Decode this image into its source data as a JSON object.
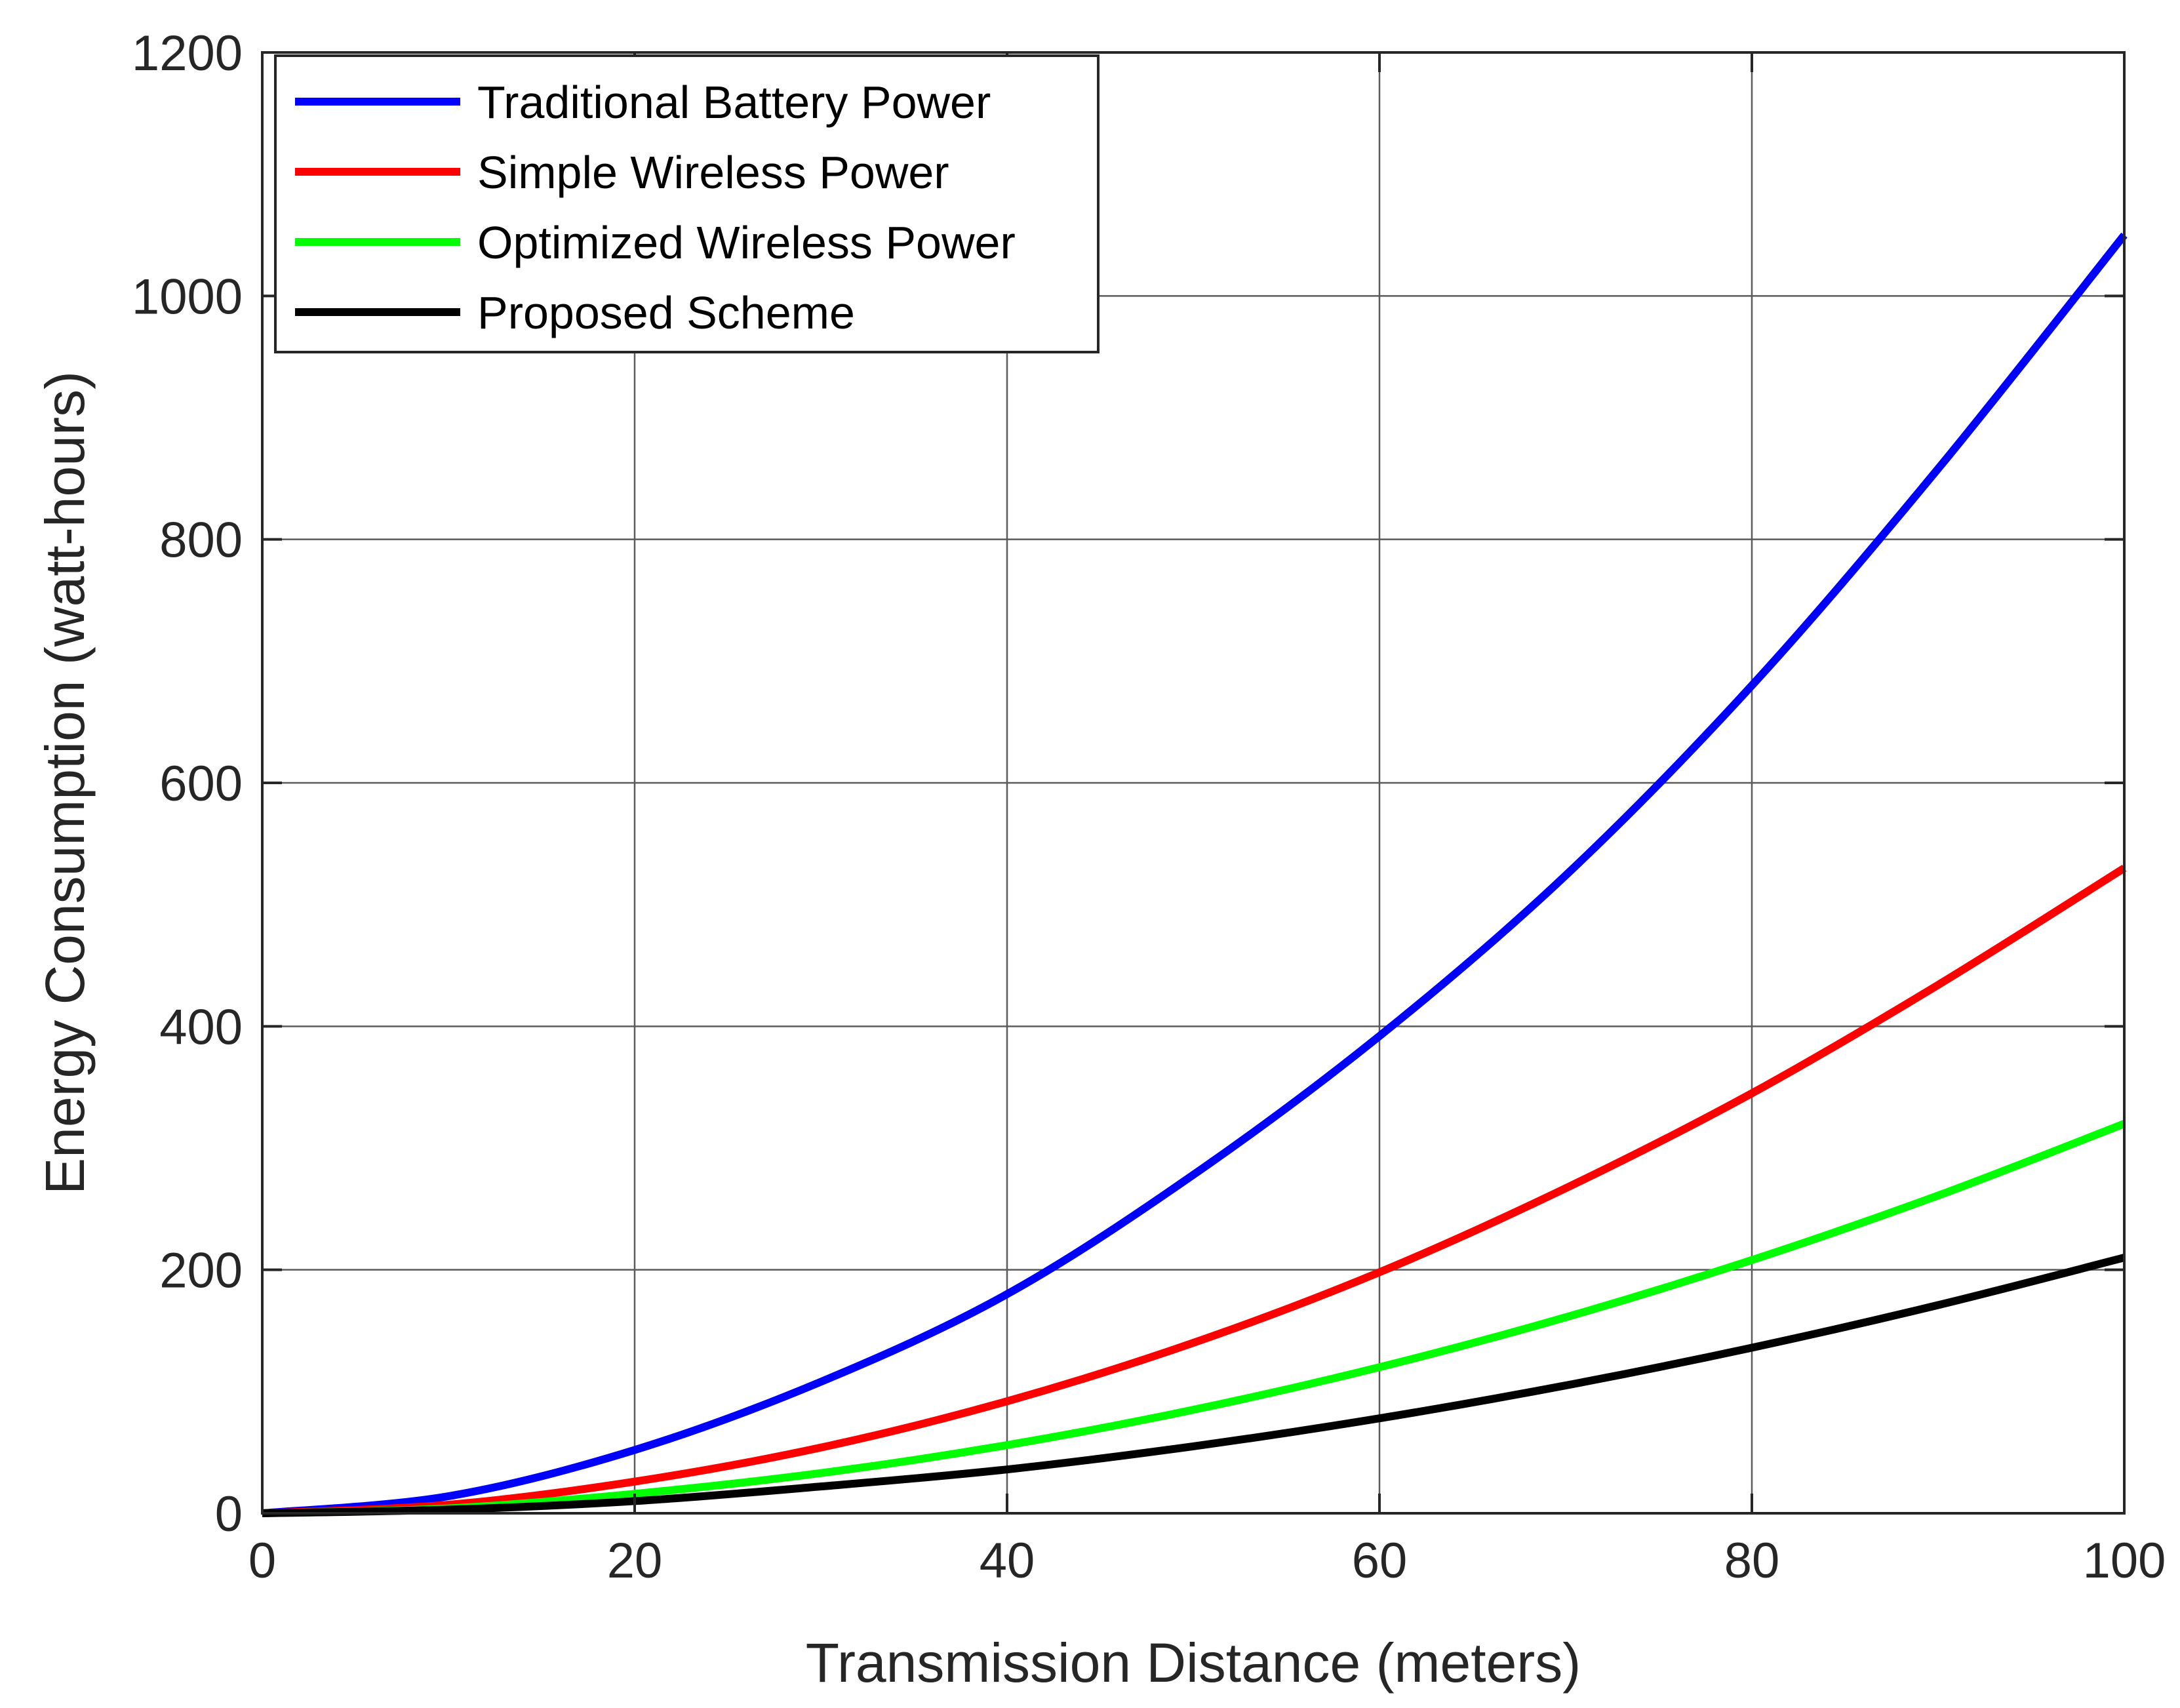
{
  "chart_data": {
    "type": "line",
    "title": "",
    "xlabel": "Transmission Distance (meters)",
    "ylabel": "Energy Consumption (watt-hours)",
    "xlim": [
      0,
      100
    ],
    "ylim": [
      0,
      1200
    ],
    "xticks": [
      0,
      20,
      40,
      60,
      80,
      100
    ],
    "yticks": [
      0,
      200,
      400,
      600,
      800,
      1000,
      1200
    ],
    "xtick_labels": [
      "0",
      "20",
      "40",
      "60",
      "80",
      "100"
    ],
    "ytick_labels": [
      "0",
      "200",
      "400",
      "600",
      "800",
      "1000",
      "1200"
    ],
    "grid": true,
    "legend_position": "top-left",
    "x": [
      0,
      10,
      20,
      30,
      40,
      50,
      60,
      70,
      80,
      90,
      100
    ],
    "series": [
      {
        "name": "Traditional Battery Power",
        "color": "#0000FF",
        "values": [
          0,
          14,
          52,
          108,
          180,
          278,
          392,
          524,
          680,
          858,
          1050
        ]
      },
      {
        "name": "Simple Wireless Power",
        "color": "#FF0000",
        "values": [
          0,
          7,
          26,
          54,
          92,
          140,
          198,
          267,
          345,
          434,
          530
        ]
      },
      {
        "name": "Optimized Wireless Power",
        "color": "#00FF00",
        "values": [
          0,
          4,
          16,
          33,
          56,
          85,
          120,
          161,
          208,
          261,
          320
        ]
      },
      {
        "name": "Proposed Scheme",
        "color": "#000000",
        "values": [
          0,
          3,
          10,
          22,
          36,
          55,
          78,
          105,
          136,
          171,
          210
        ]
      }
    ]
  }
}
